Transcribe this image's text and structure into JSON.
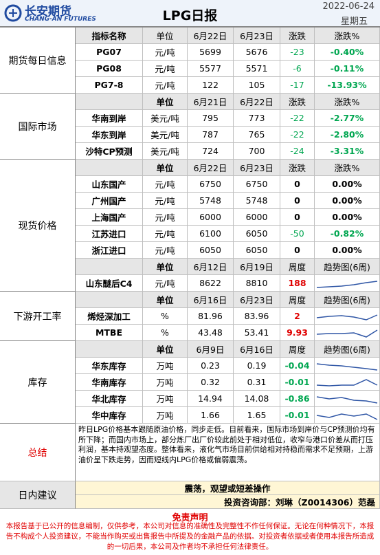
{
  "header": {
    "company": "长安期货",
    "company_en": "CHANG-AN FUTURES",
    "title": "LPG日报",
    "date": "2022-06-24",
    "weekday": "星期五"
  },
  "sections": [
    {
      "name": "期货每日信息",
      "blocks": [
        {
          "head": [
            "指标名称",
            "单位",
            "6月22日",
            "6月23日",
            "涨跌",
            "涨跌%"
          ],
          "rows": [
            [
              "PG07",
              "元/吨",
              "5699",
              "5676",
              "-23",
              "-0.40%"
            ],
            [
              "PG08",
              "元/吨",
              "5577",
              "5571",
              "-6",
              "-0.11%"
            ],
            [
              "PG7-8",
              "元/吨",
              "122",
              "105",
              "-17",
              "-13.93%"
            ]
          ]
        }
      ]
    },
    {
      "name": "国际市场",
      "blocks": [
        {
          "head": [
            null,
            "单位",
            "6月21日",
            "6月22日",
            "涨跌",
            "涨跌%"
          ],
          "rows": [
            [
              "华南到岸",
              "美元/吨",
              "795",
              "773",
              "-22",
              "-2.77%"
            ],
            [
              "华东到岸",
              "美元/吨",
              "787",
              "765",
              "-22",
              "-2.80%"
            ],
            [
              "沙特CP预测",
              "美元/吨",
              "724",
              "700",
              "-24",
              "-3.31%"
            ]
          ]
        }
      ]
    },
    {
      "name": "现货价格",
      "blocks": [
        {
          "head": [
            null,
            "单位",
            "6月22日",
            "6月23日",
            "涨跌",
            "涨跌%"
          ],
          "rows": [
            [
              "山东国产",
              "元/吨",
              "6750",
              "6750",
              "0",
              "0.00%"
            ],
            [
              "广州国产",
              "元/吨",
              "5748",
              "5748",
              "0",
              "0.00%"
            ],
            [
              "上海国产",
              "元/吨",
              "6000",
              "6000",
              "0",
              "0.00%"
            ],
            [
              "江苏进口",
              "元/吨",
              "6100",
              "6050",
              "-50",
              "-0.82%"
            ],
            [
              "浙江进口",
              "元/吨",
              "6050",
              "6050",
              "0",
              "0.00%"
            ]
          ]
        },
        {
          "head": [
            null,
            "单位",
            "6月12日",
            "6月19日",
            "周度",
            "趋势图(6周)"
          ],
          "rows": [
            [
              "山东醚后C4",
              "元/吨",
              "8622",
              "8810",
              "188"
            ]
          ]
        }
      ]
    },
    {
      "name": "下游开工率",
      "blocks": [
        {
          "head": [
            null,
            "单位",
            "6月16日",
            "6月23日",
            "周度",
            "趋势图(6周)"
          ],
          "rows": [
            [
              "烯烃深加工",
              "%",
              "81.96",
              "83.96",
              "2"
            ],
            [
              "MTBE",
              "%",
              "43.48",
              "53.41",
              "9.93"
            ]
          ]
        }
      ]
    },
    {
      "name": "库存",
      "blocks": [
        {
          "head": [
            null,
            "单位",
            "6月9日",
            "6月16日",
            "周度",
            "趋势图(6周)"
          ],
          "rows": [
            [
              "华东库存",
              "万吨",
              "0.23",
              "0.19",
              "-0.04"
            ],
            [
              "华南库存",
              "万吨",
              "0.32",
              "0.31",
              "-0.01"
            ],
            [
              "华北库存",
              "万吨",
              "14.94",
              "14.08",
              "-0.86"
            ],
            [
              "华中库存",
              "万吨",
              "1.66",
              "1.65",
              "-0.01"
            ]
          ]
        }
      ]
    }
  ],
  "summary": {
    "label": "总结",
    "text": "昨日LPG价格基本跟随原油价格，同步走低。目前看来，国际市场到岸价与CP预测价均有所下降；而国内市场上，部分炼厂出厂价较此前处于相对低位，收窄与港口价差从而打压利润，基本持观望态度。整体看来，液化气市场目前供给相对持稳而需求不足预期，上游油价呈下跌走势，因而短线内LPG价格或偏弱震荡。"
  },
  "advice": {
    "label": "日内建议",
    "lines": [
      "震荡，观望或短差操作",
      "投资咨询部：刘琳（Z0014306）范磊"
    ]
  },
  "disclaimer": {
    "title": "免责声明",
    "text": "本报告基于已公开的信息编制，仅供参考，本公司对信息的准确性及完整性不作任何保证。无论在何种情况下，本报告不构成个人投资建议，不能当作购买或出售报告中所提及的金融产品的依据。对投资者依据或者使用本报告所造成的一切后果，本公司及作者均不承担任何法律责任。"
  }
}
